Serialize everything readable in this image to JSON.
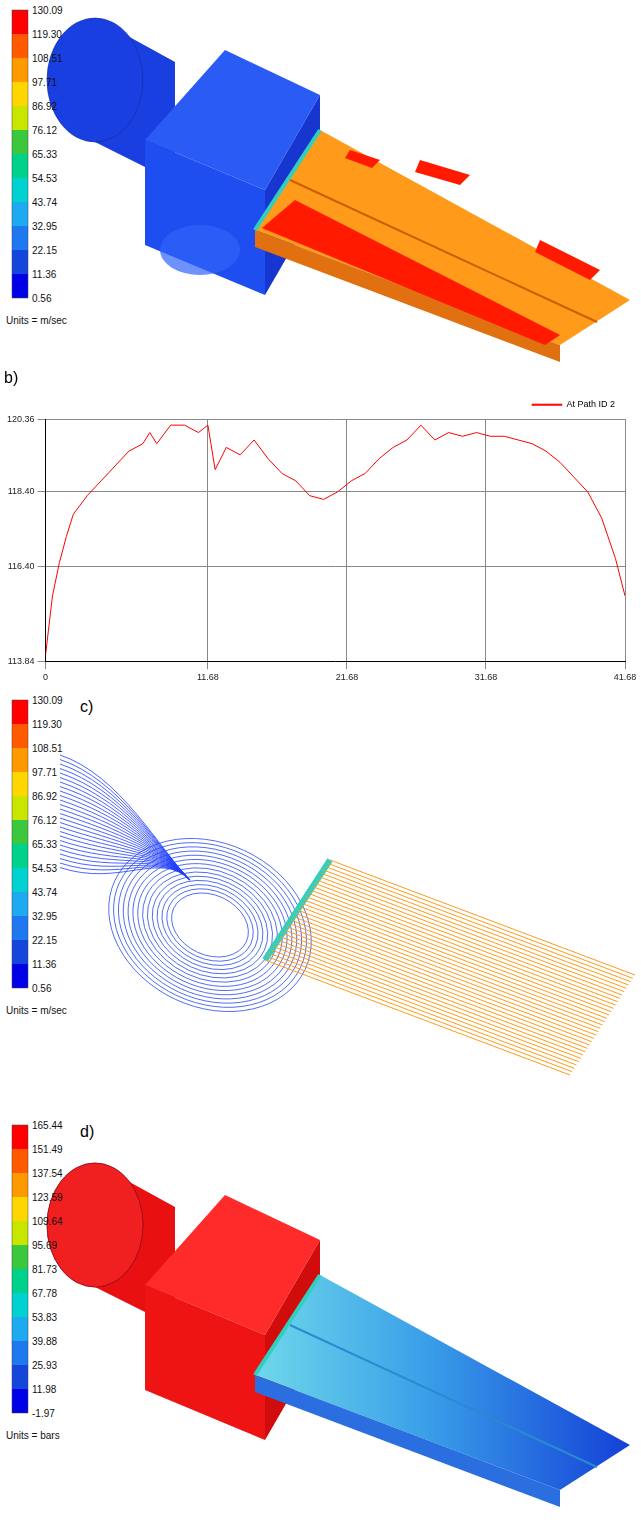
{
  "panel_a": {
    "colorbar": {
      "ticks": [
        130.09,
        {
          "value": 119.3,
          "label": "119.30"
        },
        108.51,
        97.71,
        86.92,
        76.12,
        65.33,
        54.53,
        43.74,
        32.95,
        22.15,
        11.36,
        0.56
      ],
      "units": "Units = m/sec"
    }
  },
  "chart_data": {
    "type": "line",
    "title": "b)",
    "x": [
      0,
      0.5,
      1,
      1.5,
      2,
      3,
      4,
      5,
      6,
      7,
      7.5,
      8,
      9,
      10,
      11,
      11.68,
      12.2,
      13,
      14,
      15,
      16,
      17,
      18,
      19,
      20,
      21,
      22,
      23,
      24,
      25,
      26,
      27,
      28,
      29,
      30,
      31,
      32,
      33,
      34,
      35,
      36,
      37,
      38,
      39,
      40,
      41,
      41.68
    ],
    "series": [
      {
        "name": "At Path ID 2",
        "color": "#ff0000",
        "values": [
          114.0,
          115.6,
          116.5,
          117.2,
          117.8,
          118.3,
          118.7,
          119.1,
          119.5,
          119.7,
          120.0,
          119.7,
          120.2,
          120.2,
          120.0,
          120.2,
          119.0,
          119.6,
          119.4,
          119.8,
          119.3,
          118.9,
          118.7,
          118.3,
          118.2,
          118.4,
          118.7,
          118.9,
          119.3,
          119.6,
          119.8,
          120.2,
          119.8,
          120.0,
          119.9,
          120.0,
          119.9,
          119.9,
          119.8,
          119.7,
          119.5,
          119.2,
          118.8,
          118.4,
          117.7,
          116.6,
          115.6
        ]
      }
    ],
    "xlim": [
      0,
      41.68
    ],
    "xticks": [
      0,
      11.68,
      21.68,
      31.68,
      41.68
    ],
    "ylim": [
      113.84,
      120.36
    ],
    "yticks": [
      113.84,
      {
        "value": 116.4,
        "label": "116.40"
      },
      {
        "value": 118.4,
        "label": "118.40"
      },
      120.36
    ],
    "grid": true,
    "legend": "upper right"
  },
  "panel_c": {
    "label": "c)",
    "colorbar": {
      "ticks": [
        130.09,
        {
          "value": 119.3,
          "label": "119.30"
        },
        108.51,
        97.71,
        86.92,
        76.12,
        65.33,
        54.53,
        43.74,
        32.95,
        22.15,
        11.36,
        0.56
      ],
      "units": "Units = m/sec"
    }
  },
  "panel_d": {
    "label": "d)",
    "colorbar": {
      "ticks": [
        165.44,
        151.49,
        137.54,
        123.59,
        109.64,
        95.69,
        81.73,
        67.78,
        53.83,
        39.88,
        25.93,
        11.98,
        -1.97
      ],
      "units": "Units = bars"
    }
  }
}
